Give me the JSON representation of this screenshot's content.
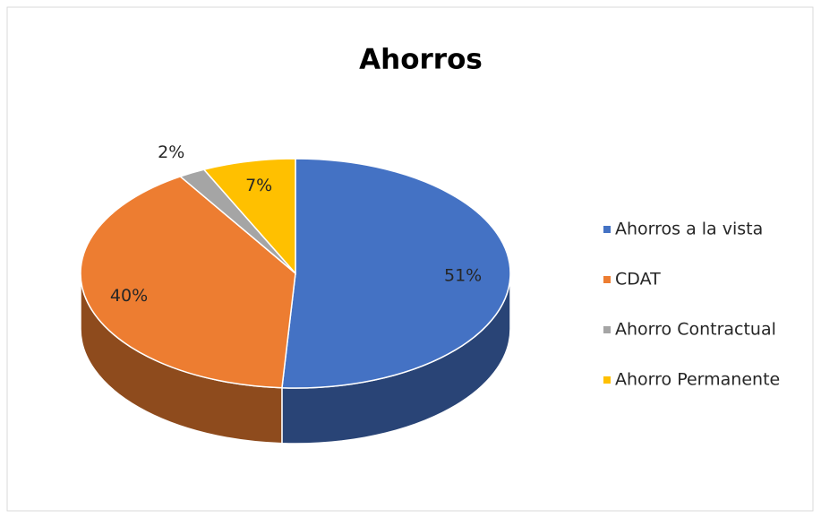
{
  "chart_data": {
    "type": "pie",
    "title": "Ahorros",
    "categories": [
      "Ahorros a la vista",
      "CDAT",
      "Ahorro Contractual",
      "Ahorro Permanente"
    ],
    "values": [
      51,
      40,
      2,
      7
    ],
    "value_labels": [
      "51%",
      "40%",
      "2%",
      "7%"
    ],
    "colors": [
      "#4472c4",
      "#ed7d31",
      "#a5a5a5",
      "#ffc000"
    ],
    "legend": "right"
  }
}
